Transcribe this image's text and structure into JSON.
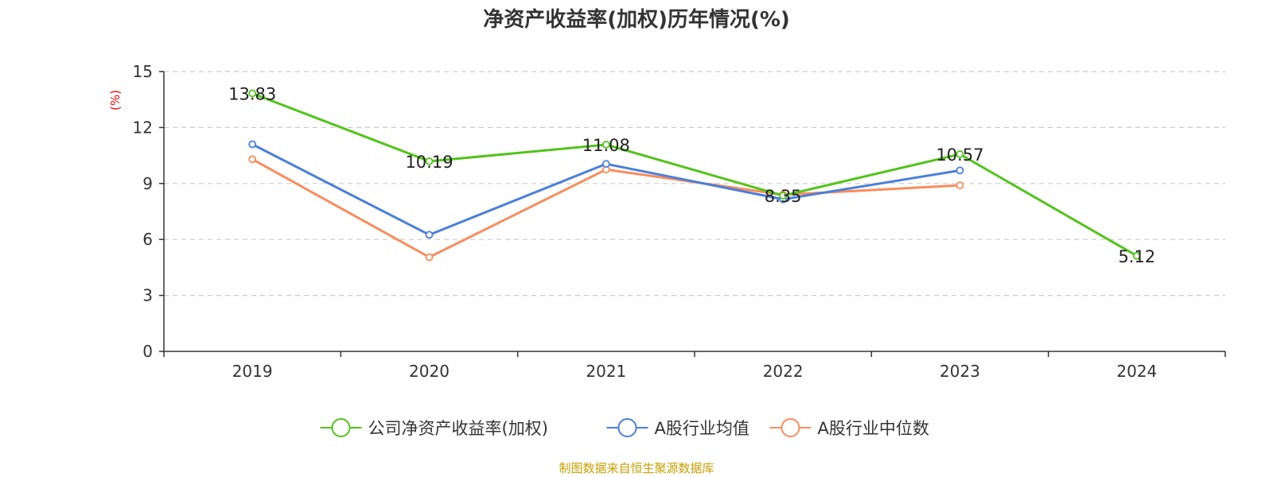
{
  "chart_data": {
    "type": "line",
    "title": "净资产收益率(加权)历年情况(%)",
    "ylabel": "(%)",
    "categories": [
      "2019",
      "2020",
      "2021",
      "2022",
      "2023",
      "2024"
    ],
    "ylim": [
      0,
      15
    ],
    "yticks": [
      0,
      3,
      6,
      9,
      12,
      15
    ],
    "grid": true,
    "legend_position": "bottom",
    "series": [
      {
        "name": "公司净资产收益率(加权)",
        "color": "#52c41a",
        "values": [
          13.83,
          10.19,
          11.08,
          8.35,
          10.57,
          5.12
        ],
        "show_labels": true
      },
      {
        "name": "A股行业均值",
        "color": "#4a7fdb",
        "values": [
          11.1,
          6.25,
          10.05,
          8.15,
          9.7,
          null
        ],
        "show_labels": false
      },
      {
        "name": "A股行业中位数",
        "color": "#fb8c5a",
        "values": [
          10.3,
          5.05,
          9.75,
          8.4,
          8.9,
          null
        ],
        "show_labels": false
      }
    ]
  },
  "source": "制图数据来自恒生聚源数据库",
  "colors": {
    "axis": "#333333",
    "grid": "#cccccc",
    "unit": "#ff0000",
    "source": "#c8a000"
  }
}
